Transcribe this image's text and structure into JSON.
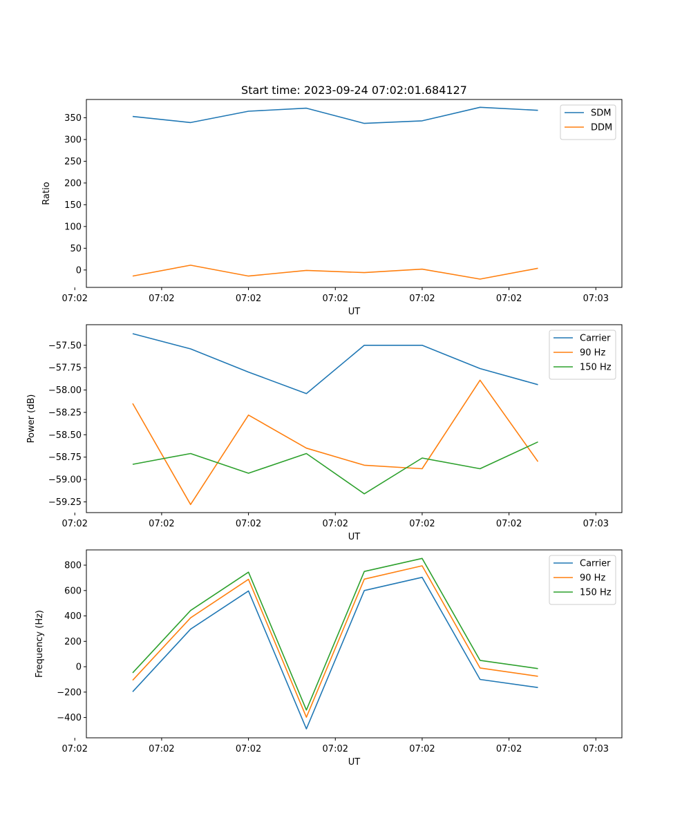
{
  "chart_data": [
    {
      "type": "line",
      "title": "Start time: 2023-09-24 07:02:01.684127",
      "xlabel": "UT",
      "ylabel": "Ratio",
      "x": [
        1,
        2,
        3,
        4,
        5,
        6,
        7,
        8
      ],
      "xlim": [
        0.2,
        9.45
      ],
      "xticks": [
        0,
        1.5,
        3,
        4.5,
        6,
        7.5,
        9
      ],
      "xtick_labels": [
        "07:02",
        "07:02",
        "07:02",
        "07:02",
        "07:02",
        "07:02",
        "07:03"
      ],
      "ylim": [
        -40,
        392
      ],
      "yticks": [
        0,
        50,
        100,
        150,
        200,
        250,
        300,
        350
      ],
      "ytick_labels": [
        "0",
        "50",
        "100",
        "150",
        "200",
        "250",
        "300",
        "350"
      ],
      "legend_position": "top-right",
      "series": [
        {
          "name": "SDM",
          "color": "#1f77b4",
          "values": [
            353,
            339,
            365,
            372,
            337,
            343,
            374,
            367
          ]
        },
        {
          "name": "DDM",
          "color": "#ff7f0e",
          "values": [
            -14,
            11,
            -14,
            -1,
            -6,
            2,
            -21,
            4
          ]
        }
      ]
    },
    {
      "type": "line",
      "title": "",
      "xlabel": "UT",
      "ylabel": "Power (dB)",
      "x": [
        1,
        2,
        3,
        4,
        5,
        6,
        7,
        8
      ],
      "xlim": [
        0.2,
        9.45
      ],
      "xticks": [
        0,
        1.5,
        3,
        4.5,
        6,
        7.5,
        9
      ],
      "xtick_labels": [
        "07:02",
        "07:02",
        "07:02",
        "07:02",
        "07:02",
        "07:02",
        "07:03"
      ],
      "ylim": [
        -59.37,
        -57.27
      ],
      "yticks": [
        -57.5,
        -57.75,
        -58.0,
        -58.25,
        -58.5,
        -58.75,
        -59.0,
        -59.25
      ],
      "ytick_labels": [
        "−57.50",
        "−57.75",
        "−58.00",
        "−58.25",
        "−58.50",
        "−58.75",
        "−59.00",
        "−59.25"
      ],
      "legend_position": "top-right",
      "series": [
        {
          "name": "Carrier",
          "color": "#1f77b4",
          "values": [
            -57.37,
            -57.54,
            -57.8,
            -58.04,
            -57.5,
            -57.5,
            -57.76,
            -57.94
          ]
        },
        {
          "name": "90 Hz",
          "color": "#ff7f0e",
          "values": [
            -58.15,
            -59.28,
            -58.28,
            -58.65,
            -58.84,
            -58.88,
            -57.89,
            -58.8
          ]
        },
        {
          "name": "150 Hz",
          "color": "#2ca02c",
          "values": [
            -58.83,
            -58.71,
            -58.93,
            -58.71,
            -59.16,
            -58.76,
            -58.88,
            -58.58
          ]
        }
      ]
    },
    {
      "type": "line",
      "title": "",
      "xlabel": "UT",
      "ylabel": "Frequency (Hz)",
      "x": [
        1,
        2,
        3,
        4,
        5,
        6,
        7,
        8
      ],
      "xlim": [
        0.2,
        9.45
      ],
      "xticks": [
        0,
        1.5,
        3,
        4.5,
        6,
        7.5,
        9
      ],
      "xtick_labels": [
        "07:02",
        "07:02",
        "07:02",
        "07:02",
        "07:02",
        "07:02",
        "07:03"
      ],
      "ylim": [
        -560,
        920
      ],
      "yticks": [
        -400,
        -200,
        0,
        200,
        400,
        600,
        800
      ],
      "ytick_labels": [
        "−400",
        "−200",
        "0",
        "200",
        "400",
        "600",
        "800"
      ],
      "legend_position": "top-right",
      "series": [
        {
          "name": "Carrier",
          "color": "#1f77b4",
          "values": [
            -197,
            296,
            597,
            -490,
            600,
            704,
            -100,
            -164
          ]
        },
        {
          "name": "90 Hz",
          "color": "#ff7f0e",
          "values": [
            -107,
            385,
            688,
            -398,
            690,
            795,
            -10,
            -75
          ]
        },
        {
          "name": "150 Hz",
          "color": "#2ca02c",
          "values": [
            -48,
            443,
            745,
            -341,
            750,
            853,
            50,
            -15
          ]
        }
      ]
    }
  ]
}
